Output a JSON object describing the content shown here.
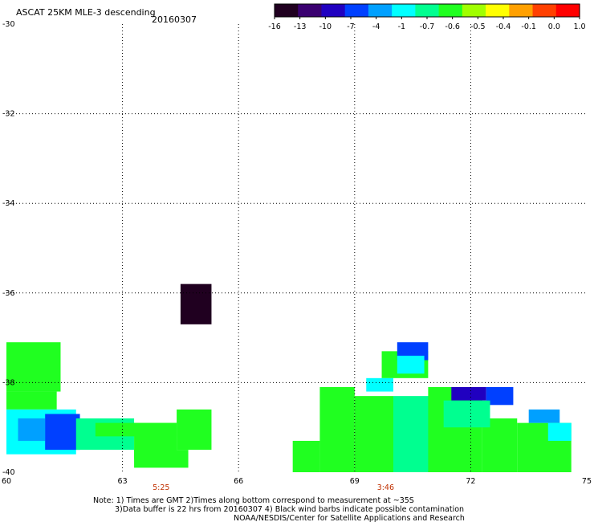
{
  "header": {
    "title": "ASCAT 25KM MLE-3 descending",
    "date": "20160307"
  },
  "colorbar": {
    "labels": [
      "-16",
      "-13",
      "-10",
      "-7",
      "-4",
      "-1",
      "-0.7",
      "-0.6",
      "-0.5",
      "-0.4",
      "-0.1",
      "0.0",
      "1.0"
    ],
    "colors": [
      "#200020",
      "#3a0070",
      "#2000c0",
      "#0040ff",
      "#00a0ff",
      "#00ffff",
      "#00ff90",
      "#20ff20",
      "#a0ff00",
      "#ffff00",
      "#ffa000",
      "#ff4000",
      "#ff0000"
    ]
  },
  "footer": {
    "line1": "Note: 1) Times are GMT 2)Times along bottom correspond to measurement at ~35S",
    "line2": "3)Data buffer is 22 hrs from 20160307 4) Black wind barbs indicate possible contamination",
    "line3": "NOAA/NESDIS/Center for Satellite Applications and Research"
  },
  "chart_data": {
    "type": "heatmap",
    "title": "ASCAT 25KM MLE-3 descending",
    "xlabel": "",
    "ylabel": "",
    "xlim": [
      60,
      75
    ],
    "ylim": [
      -40,
      -30
    ],
    "x_ticks": [
      "60",
      "63",
      "66",
      "69",
      "72",
      "75"
    ],
    "y_ticks": [
      "-30",
      "-32",
      "-34",
      "-36",
      "-38",
      "-40"
    ],
    "grid": true,
    "pass_times": [
      {
        "x": 64,
        "label": "5:25"
      },
      {
        "x": 69.8,
        "label": "3:46"
      }
    ],
    "regions": [
      {
        "lon": [
          60,
          61.4
        ],
        "lat": [
          -38.2,
          -37.1
        ],
        "color": "#20ff20"
      },
      {
        "lon": [
          60,
          61.3
        ],
        "lat": [
          -38.6,
          -38.2
        ],
        "color": "#20ff20"
      },
      {
        "lon": [
          60,
          61.8
        ],
        "lat": [
          -39.6,
          -38.6
        ],
        "color": "#00ffff"
      },
      {
        "lon": [
          60.3,
          61
        ],
        "lat": [
          -39.3,
          -38.8
        ],
        "color": "#00a0ff"
      },
      {
        "lon": [
          61,
          61.9
        ],
        "lat": [
          -39.5,
          -38.7
        ],
        "color": "#0040ff"
      },
      {
        "lon": [
          61.8,
          63.3
        ],
        "lat": [
          -39.5,
          -38.8
        ],
        "color": "#00ff90"
      },
      {
        "lon": [
          62.3,
          64.4
        ],
        "lat": [
          -39.2,
          -38.9
        ],
        "color": "#20ff20"
      },
      {
        "lon": [
          63.3,
          64.4
        ],
        "lat": [
          -39.7,
          -38.9
        ],
        "color": "#20ff20"
      },
      {
        "lon": [
          64.4,
          65.3
        ],
        "lat": [
          -39.5,
          -38.6
        ],
        "color": "#20ff20"
      },
      {
        "lon": [
          63.3,
          64.7
        ],
        "lat": [
          -39.9,
          -39.5
        ],
        "color": "#20ff20"
      },
      {
        "lon": [
          64.5,
          65.3
        ],
        "lat": [
          -36.7,
          -35.8
        ],
        "color": "#200020"
      },
      {
        "lon": [
          67.4,
          68.1
        ],
        "lat": [
          -40,
          -39.3
        ],
        "color": "#20ff20"
      },
      {
        "lon": [
          68.1,
          69
        ],
        "lat": [
          -40,
          -38.1
        ],
        "color": "#20ff20"
      },
      {
        "lon": [
          69,
          70
        ],
        "lat": [
          -40,
          -38.3
        ],
        "color": "#20ff20"
      },
      {
        "lon": [
          69.3,
          70
        ],
        "lat": [
          -38.2,
          -37.9
        ],
        "color": "#00ffff"
      },
      {
        "lon": [
          69.7,
          70.9
        ],
        "lat": [
          -37.9,
          -37.3
        ],
        "color": "#20ff20"
      },
      {
        "lon": [
          70.1,
          70.9
        ],
        "lat": [
          -37.5,
          -37.1
        ],
        "color": "#0040ff"
      },
      {
        "lon": [
          70.1,
          70.8
        ],
        "lat": [
          -37.8,
          -37.4
        ],
        "color": "#00ffff"
      },
      {
        "lon": [
          70,
          71.5
        ],
        "lat": [
          -40,
          -38.3
        ],
        "color": "#00ff90"
      },
      {
        "lon": [
          70.9,
          72.3
        ],
        "lat": [
          -40,
          -38.1
        ],
        "color": "#20ff20"
      },
      {
        "lon": [
          72.3,
          73.2
        ],
        "lat": [
          -40,
          -38.8
        ],
        "color": "#20ff20"
      },
      {
        "lon": [
          71.5,
          72.4
        ],
        "lat": [
          -38.4,
          -38.1
        ],
        "color": "#2000c0"
      },
      {
        "lon": [
          72.4,
          73.1
        ],
        "lat": [
          -38.5,
          -38.1
        ],
        "color": "#0040ff"
      },
      {
        "lon": [
          71.3,
          72.5
        ],
        "lat": [
          -39,
          -38.4
        ],
        "color": "#00ff90"
      },
      {
        "lon": [
          73.2,
          74.6
        ],
        "lat": [
          -40,
          -38.9
        ],
        "color": "#20ff20"
      },
      {
        "lon": [
          73.5,
          74.3
        ],
        "lat": [
          -38.9,
          -38.6
        ],
        "color": "#00a0ff"
      },
      {
        "lon": [
          74,
          74.6
        ],
        "lat": [
          -39.3,
          -38.9
        ],
        "color": "#00ffff"
      }
    ]
  }
}
